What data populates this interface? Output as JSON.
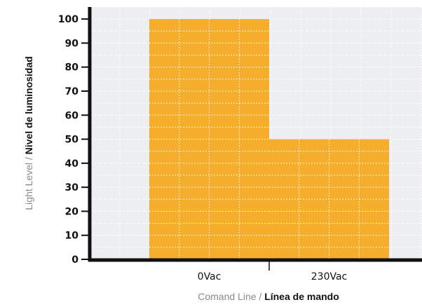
{
  "chart_data": {
    "type": "bar",
    "categories": [
      "0Vac",
      "230Vac"
    ],
    "values": [
      100,
      50
    ],
    "ylim": [
      0,
      105
    ],
    "yticks": [
      0,
      10,
      20,
      30,
      40,
      50,
      60,
      70,
      80,
      90,
      100
    ],
    "grid": true,
    "legend": "none",
    "xlabel": {
      "en": "Comand Line",
      "separator": " / ",
      "es": "Línea de mando"
    },
    "ylabel": {
      "en": "Light Level",
      "separator": " / ",
      "es": "Nivel de luminosidad"
    },
    "colors": {
      "bar": "#F5AE2C",
      "plot_background": "#EDEEF2",
      "grid": "#FFFFFF",
      "axis": "#111111"
    }
  }
}
